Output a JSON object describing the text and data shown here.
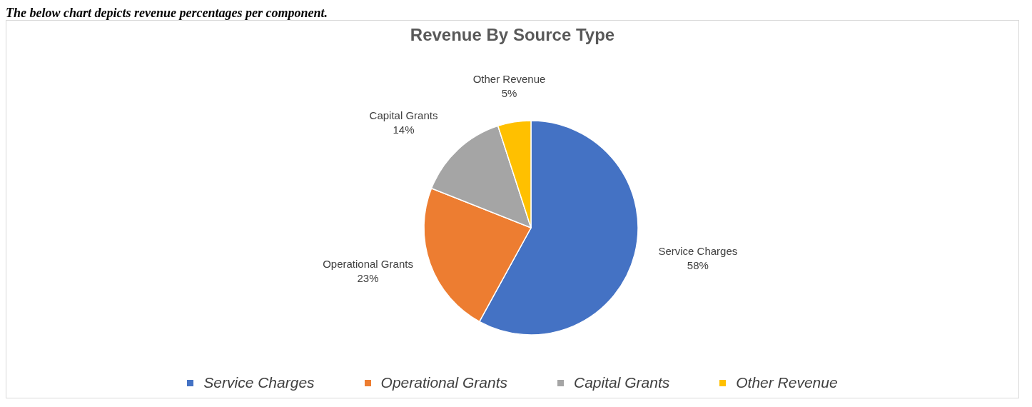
{
  "chart_data": {
    "type": "pie",
    "title": "Revenue By Source Type",
    "annotations": [
      "The below chart depicts revenue percentages per component."
    ],
    "categories": [
      "Service Charges",
      "Operational Grants",
      "Capital Grants",
      "Other Revenue"
    ],
    "values": [
      58,
      23,
      14,
      5
    ],
    "colors": [
      "#4472c4",
      "#ed7d31",
      "#a5a5a5",
      "#ffc000"
    ],
    "value_labels": [
      "58%",
      "23%",
      "14%",
      "5%"
    ],
    "legend": "bottom"
  }
}
